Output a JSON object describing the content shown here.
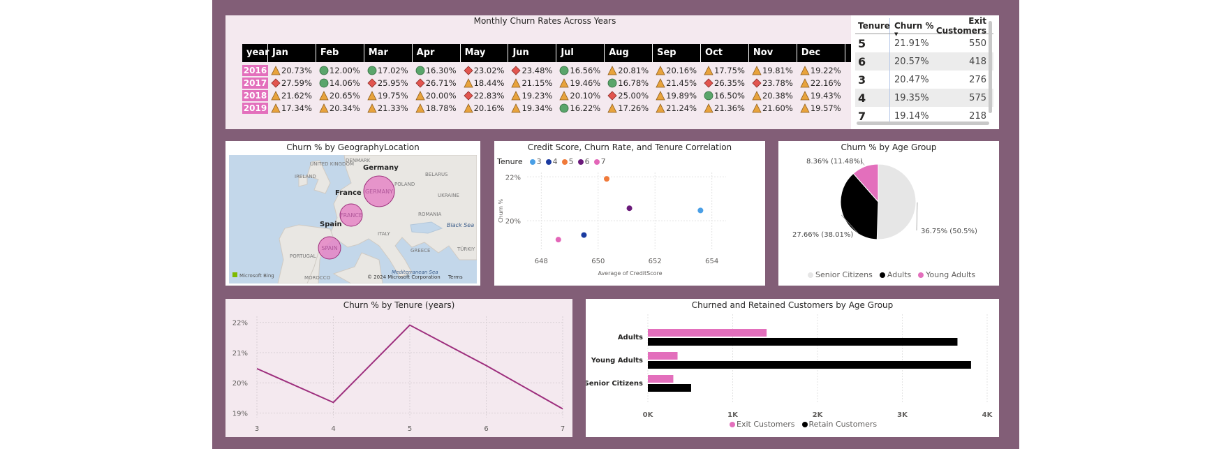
{
  "monthly": {
    "title": "Monthly Churn Rates Across Years",
    "headers": [
      "year",
      "Jan",
      "Feb",
      "Mar",
      "Apr",
      "May",
      "Jun",
      "Jul",
      "Aug",
      "Sep",
      "Oct",
      "Nov",
      "Dec"
    ],
    "rows": [
      {
        "year": "2016",
        "cells": [
          [
            "tri",
            "20.73%"
          ],
          [
            "circ",
            "12.00%"
          ],
          [
            "circ",
            "17.02%"
          ],
          [
            "circ",
            "16.30%"
          ],
          [
            "dia",
            "23.02%"
          ],
          [
            "dia",
            "23.48%"
          ],
          [
            "circ",
            "16.56%"
          ],
          [
            "tri",
            "20.81%"
          ],
          [
            "tri",
            "20.16%"
          ],
          [
            "tri",
            "17.75%"
          ],
          [
            "tri",
            "19.81%"
          ],
          [
            "tri",
            "19.22%"
          ]
        ]
      },
      {
        "year": "2017",
        "cells": [
          [
            "dia",
            "27.59%"
          ],
          [
            "circ",
            "14.06%"
          ],
          [
            "dia",
            "25.95%"
          ],
          [
            "dia",
            "26.71%"
          ],
          [
            "tri",
            "18.44%"
          ],
          [
            "tri",
            "21.15%"
          ],
          [
            "tri",
            "19.46%"
          ],
          [
            "circ",
            "16.78%"
          ],
          [
            "tri",
            "21.45%"
          ],
          [
            "dia",
            "26.35%"
          ],
          [
            "dia",
            "23.78%"
          ],
          [
            "tri",
            "22.16%"
          ]
        ]
      },
      {
        "year": "2018",
        "cells": [
          [
            "tri",
            "21.62%"
          ],
          [
            "tri",
            "20.65%"
          ],
          [
            "tri",
            "19.75%"
          ],
          [
            "tri",
            "20.00%"
          ],
          [
            "dia",
            "22.83%"
          ],
          [
            "tri",
            "19.23%"
          ],
          [
            "tri",
            "20.10%"
          ],
          [
            "dia",
            "25.00%"
          ],
          [
            "tri",
            "19.89%"
          ],
          [
            "circ",
            "16.50%"
          ],
          [
            "tri",
            "20.38%"
          ],
          [
            "tri",
            "19.43%"
          ]
        ]
      },
      {
        "year": "2019",
        "cells": [
          [
            "tri",
            "17.34%"
          ],
          [
            "tri",
            "20.34%"
          ],
          [
            "tri",
            "21.33%"
          ],
          [
            "tri",
            "18.78%"
          ],
          [
            "tri",
            "20.16%"
          ],
          [
            "tri",
            "19.34%"
          ],
          [
            "circ",
            "16.22%"
          ],
          [
            "tri",
            "17.26%"
          ],
          [
            "tri",
            "21.24%"
          ],
          [
            "tri",
            "21.36%"
          ],
          [
            "tri",
            "21.60%"
          ],
          [
            "tri",
            "19.57%"
          ]
        ]
      }
    ],
    "icon_colors": {
      "tri": "#e8a33c",
      "circ": "#5aa56b",
      "dia": "#e2554f"
    }
  },
  "tenure_table": {
    "headers": [
      "Tenure",
      "Churn %",
      "Exit Customers"
    ],
    "rows": [
      [
        "5",
        "21.91%",
        "550"
      ],
      [
        "6",
        "20.57%",
        "418"
      ],
      [
        "3",
        "20.47%",
        "276"
      ],
      [
        "4",
        "19.35%",
        "575"
      ],
      [
        "7",
        "19.14%",
        "218"
      ]
    ]
  },
  "map": {
    "title": "Churn % by GeographyLocation",
    "countries": [
      "Germany",
      "France",
      "Spain"
    ],
    "bubble_labels": [
      "GERMANY",
      "FRANCE",
      "SPAIN"
    ],
    "base_labels": [
      "DENMARK",
      "UNITED KINGDOM",
      "IRELAND",
      "POLAND",
      "BELARUS",
      "UKRAINE",
      "ROMANIA",
      "Black Sea",
      "ITALY",
      "GREECE",
      "TÜRKIY",
      "PORTUGAL",
      "MOROCCO",
      "Mediterranean Sea"
    ],
    "attribution": "© 2024 Microsoft Corporation",
    "terms": "Terms",
    "bing": "Microsoft Bing"
  },
  "chart_data": [
    {
      "type": "scatter",
      "title": "Credit Score, Churn Rate, and Tenure Correlation",
      "xlabel": "Average of CreditScore",
      "ylabel": "Churn %",
      "legend_title": "Tenure",
      "xlim": [
        647.5,
        654.5
      ],
      "ylim": [
        18.7,
        22.2
      ],
      "x_ticks": [
        "648",
        "650",
        "652",
        "654"
      ],
      "y_ticks": [
        "22%",
        "20%"
      ],
      "series": [
        {
          "name": "3",
          "color": "#4a9fe6",
          "x": 653.6,
          "y": 20.47
        },
        {
          "name": "4",
          "color": "#1a3aa0",
          "x": 649.5,
          "y": 19.35
        },
        {
          "name": "5",
          "color": "#f07a3a",
          "x": 650.3,
          "y": 21.91
        },
        {
          "name": "6",
          "color": "#6a1a7a",
          "x": 651.1,
          "y": 20.57
        },
        {
          "name": "7",
          "color": "#e366b8",
          "x": 648.6,
          "y": 19.14
        }
      ]
    },
    {
      "type": "pie",
      "title": "Churn % by Age Group",
      "slices": [
        {
          "name": "Senior Citizens",
          "value": 50.5,
          "label": "36.75% (50.5%)",
          "color": "#e6e6e6"
        },
        {
          "name": "Adults",
          "value": 38.01,
          "label": "27.66% (38.01%)",
          "color": "#000000"
        },
        {
          "name": "Young Adults",
          "value": 11.48,
          "label": "8.36% (11.48%)",
          "color": "#e36fbc"
        }
      ]
    },
    {
      "type": "line",
      "title": "Churn % by Tenure (years)",
      "x": [
        "3",
        "4",
        "5",
        "6",
        "7"
      ],
      "values": [
        20.47,
        19.35,
        21.91,
        20.57,
        19.14
      ],
      "ylim": [
        18.85,
        22.2
      ],
      "y_ticks": [
        "22%",
        "21%",
        "20%",
        "19%"
      ],
      "color": "#9d2e7d"
    },
    {
      "type": "bar",
      "title": "Churned and Retained Customers by Age Group",
      "categories": [
        "Adults",
        "Young Adults",
        "Senior Citizens"
      ],
      "xlim": [
        0,
        4000
      ],
      "x_ticks": [
        "0K",
        "1K",
        "2K",
        "3K",
        "4K"
      ],
      "series": [
        {
          "name": "Exit Customers",
          "color": "#e36fbc",
          "values": [
            1400,
            350,
            300
          ]
        },
        {
          "name": "Retain Customers",
          "color": "#000000",
          "values": [
            3650,
            3810,
            510
          ]
        }
      ]
    }
  ]
}
